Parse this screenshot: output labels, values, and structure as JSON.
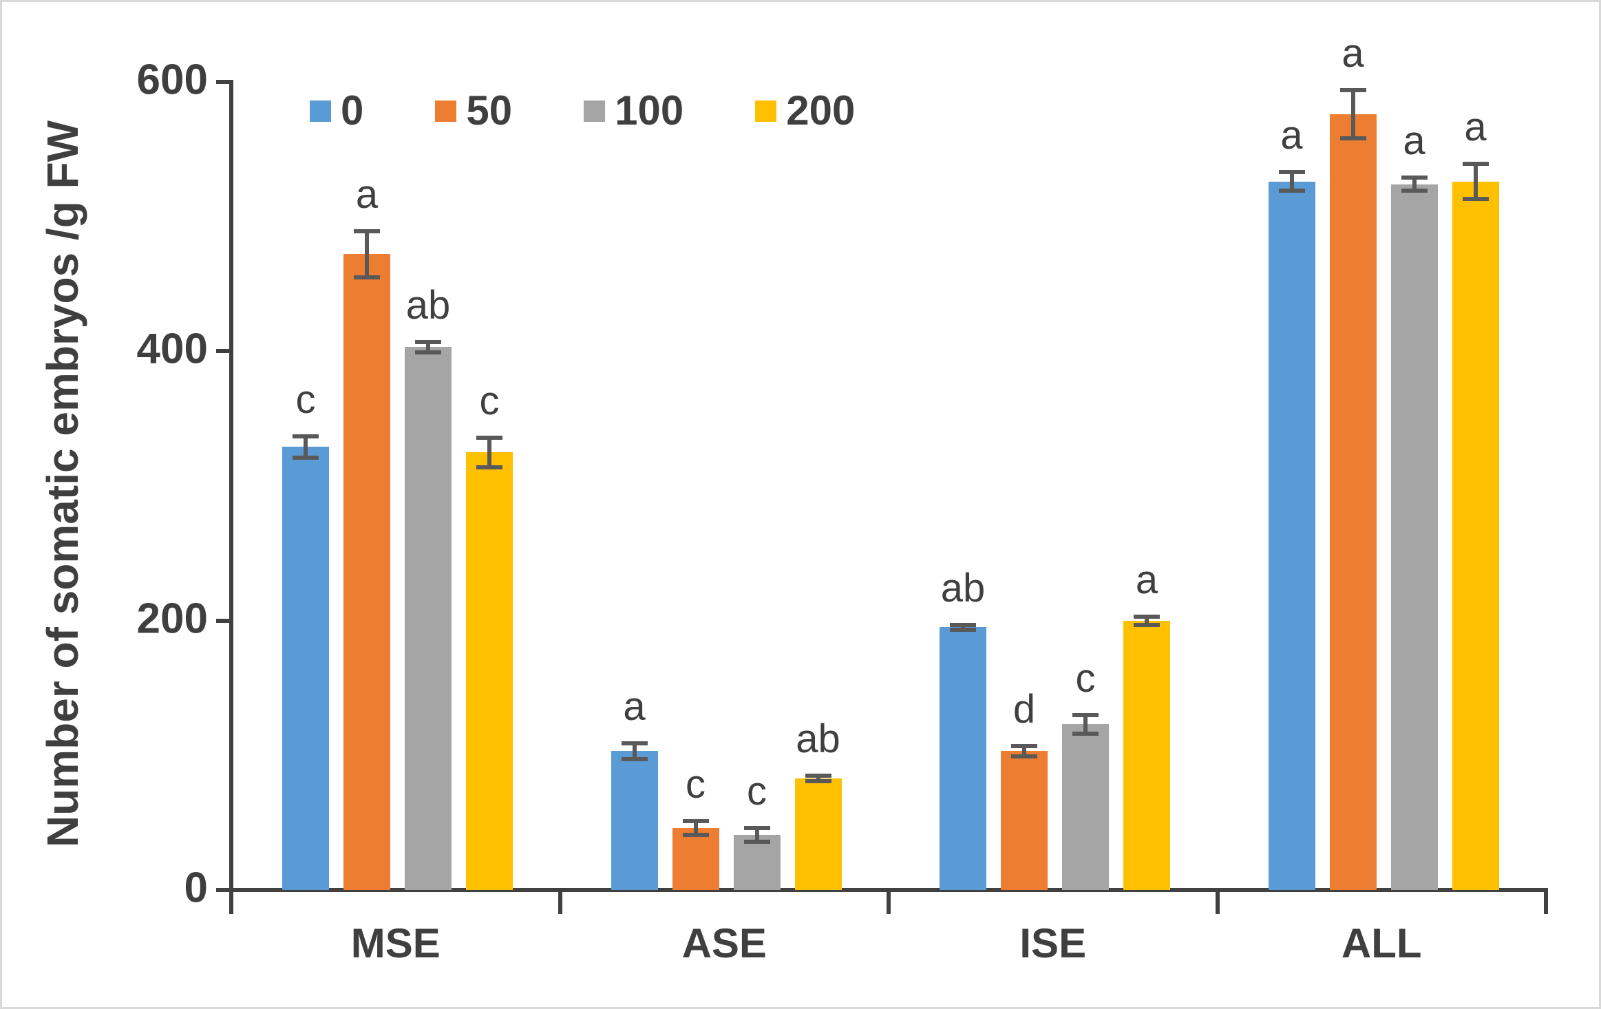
{
  "figure": {
    "background": "#FFFFFF",
    "border_color": "#D9D9D9"
  },
  "chart_data": {
    "type": "bar",
    "title": "",
    "xlabel": "",
    "ylabel": "Number of somatic embryos /g FW",
    "categories": [
      "MSE",
      "ASE",
      "ISE",
      "ALL"
    ],
    "series": [
      {
        "name": "0",
        "color": "#5B9BD5",
        "values": [
          329,
          103,
          195,
          526
        ],
        "errors": [
          8,
          6,
          2,
          7
        ],
        "letters": [
          "c",
          "a",
          "ab",
          "a"
        ]
      },
      {
        "name": "50",
        "color": "#ED7D31",
        "values": [
          472,
          46,
          103,
          576
        ],
        "errors": [
          17,
          5,
          4,
          18
        ],
        "letters": [
          "a",
          "c",
          "d",
          "a"
        ]
      },
      {
        "name": "100",
        "color": "#A5A5A5",
        "values": [
          403,
          41,
          123,
          524
        ],
        "errors": [
          4,
          5,
          7,
          5
        ],
        "letters": [
          "ab",
          "c",
          "c",
          "a"
        ]
      },
      {
        "name": "200",
        "color": "#FFC000",
        "values": [
          325,
          83,
          200,
          526
        ],
        "errors": [
          11,
          2,
          3,
          13
        ],
        "letters": [
          "c",
          "ab",
          "a",
          "a"
        ]
      }
    ],
    "ylim": [
      0,
      600
    ],
    "yticks": [
      0,
      200,
      400,
      600
    ],
    "grid": false,
    "legend_position": "top-inside-horizontal",
    "axis_color": "#404040",
    "error_bar_color": "#595959",
    "text_color": "#3F3F3F"
  }
}
